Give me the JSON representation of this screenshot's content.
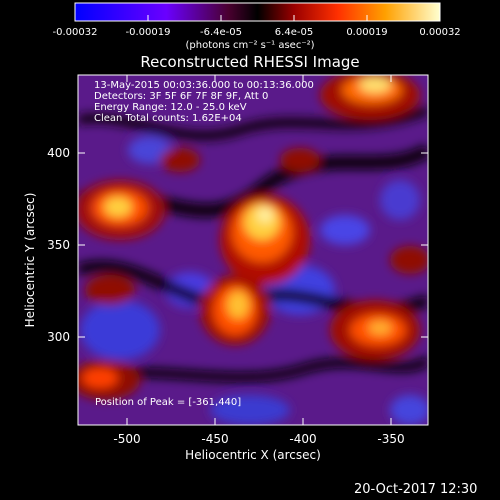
{
  "colorbar": {
    "ticks": [
      "-0.00032",
      "-0.00019",
      "-6.4e-05",
      "6.4e-05",
      "0.00019",
      "0.00032"
    ],
    "units": "(photons cm⁻² s⁻¹ asec⁻²)"
  },
  "title": "Reconstructed RHESSI Image",
  "info": {
    "line1": "13-May-2015 00:03:36.000 to 00:13:36.000",
    "line2": "Detectors: 3F 5F 6F 7F 8F 9F, Att 0",
    "line3": "Energy Range: 12.0 - 25.0 keV",
    "line4": "Clean     Total counts: 1.62E+04"
  },
  "axes": {
    "xlabel": "Heliocentric X (arcsec)",
    "ylabel": "Heliocentric Y (arcsec)",
    "xticks": [
      "-500",
      "-450",
      "-400",
      "-350"
    ],
    "yticks": [
      "400",
      "350",
      "300"
    ]
  },
  "peak": "Position of Peak = [-361,440]",
  "timestamp": "20-Oct-2017 12:30",
  "colors": {
    "background": "#000000",
    "foreground": "#ffffff"
  }
}
